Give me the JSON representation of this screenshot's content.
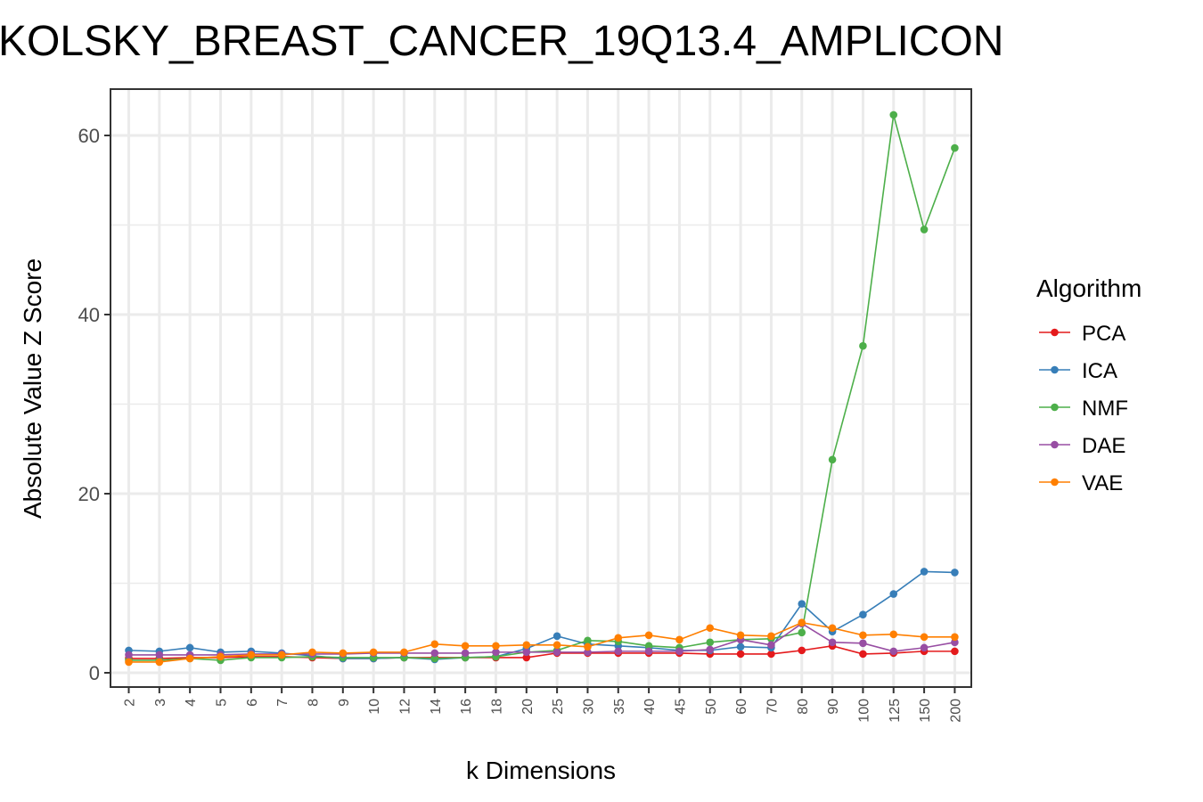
{
  "chart_data": {
    "type": "line",
    "title": "KOLSKY_BREAST_CANCER_19Q13.4_AMPLICON",
    "xlabel": "k Dimensions",
    "ylabel": "Absolute Value Z Score",
    "categories": [
      "2",
      "3",
      "4",
      "5",
      "6",
      "7",
      "8",
      "9",
      "10",
      "12",
      "14",
      "16",
      "18",
      "20",
      "25",
      "30",
      "35",
      "40",
      "45",
      "50",
      "60",
      "70",
      "80",
      "90",
      "100",
      "125",
      "150",
      "200"
    ],
    "ylim": [
      -2,
      65
    ],
    "yticks": [
      0,
      20,
      40,
      60
    ],
    "grid": true,
    "legend_title": "Algorithm",
    "legend_position": "right",
    "series": [
      {
        "name": "PCA",
        "color": "#e41a1c",
        "values": [
          1.6,
          1.6,
          1.7,
          1.7,
          1.8,
          1.8,
          1.7,
          1.6,
          1.6,
          1.7,
          1.7,
          1.7,
          1.7,
          1.7,
          2.2,
          2.2,
          2.2,
          2.2,
          2.2,
          2.1,
          2.1,
          2.1,
          2.5,
          3.0,
          2.1,
          2.2,
          2.4,
          2.4
        ]
      },
      {
        "name": "ICA",
        "color": "#377eb8",
        "values": [
          2.5,
          2.4,
          2.8,
          2.3,
          2.4,
          2.2,
          1.9,
          1.6,
          1.6,
          1.7,
          1.5,
          1.7,
          1.8,
          2.7,
          4.1,
          3.2,
          3.0,
          2.8,
          2.5,
          2.5,
          2.9,
          2.8,
          7.7,
          4.6,
          6.5,
          8.8,
          11.3,
          11.2
        ]
      },
      {
        "name": "NMF",
        "color": "#4daf4a",
        "values": [
          1.4,
          1.4,
          1.6,
          1.4,
          1.7,
          1.7,
          1.8,
          1.7,
          1.7,
          1.7,
          1.6,
          1.7,
          1.8,
          2.3,
          2.5,
          3.6,
          3.5,
          3.0,
          2.8,
          3.4,
          3.7,
          3.8,
          4.5,
          23.8,
          36.5,
          62.3,
          49.5,
          58.6
        ]
      },
      {
        "name": "DAE",
        "color": "#984ea3",
        "values": [
          2.0,
          2.0,
          2.0,
          2.0,
          2.1,
          2.1,
          2.1,
          2.1,
          2.2,
          2.2,
          2.2,
          2.2,
          2.3,
          2.3,
          2.3,
          2.3,
          2.4,
          2.4,
          2.4,
          2.6,
          3.7,
          3.1,
          5.5,
          3.4,
          3.3,
          2.4,
          2.8,
          3.4
        ]
      },
      {
        "name": "VAE",
        "color": "#ff7f00",
        "values": [
          1.2,
          1.2,
          1.6,
          1.8,
          2.0,
          2.0,
          2.3,
          2.2,
          2.3,
          2.3,
          3.2,
          3.0,
          3.0,
          3.1,
          3.1,
          2.9,
          3.9,
          4.2,
          3.7,
          5.0,
          4.2,
          4.1,
          5.6,
          5.0,
          4.2,
          4.3,
          4.0,
          4.0
        ]
      }
    ]
  }
}
